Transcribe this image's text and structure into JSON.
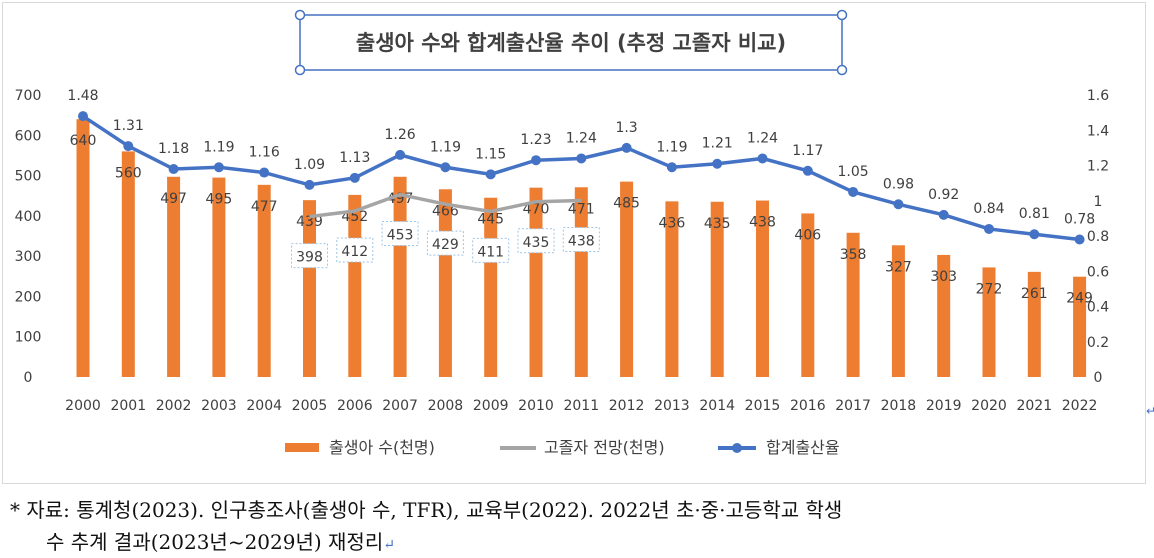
{
  "chart_data": {
    "type": "bar+line",
    "title": "출생아 수와 합계출산율 추이 (추정 고졸자 비교)",
    "categories": [
      "2000",
      "2001",
      "2002",
      "2003",
      "2004",
      "2005",
      "2006",
      "2007",
      "2008",
      "2009",
      "2010",
      "2011",
      "2012",
      "2013",
      "2014",
      "2015",
      "2016",
      "2017",
      "2018",
      "2019",
      "2020",
      "2021",
      "2022"
    ],
    "left_axis": {
      "ylim": [
        0,
        700
      ],
      "ticks": [
        "0",
        "100",
        "200",
        "300",
        "400",
        "500",
        "600",
        "700"
      ]
    },
    "right_axis": {
      "ylim": [
        0,
        1.6
      ],
      "ticks": [
        "0",
        "0.2",
        "0.4",
        "0.6",
        "0.8",
        "1",
        "1.2",
        "1.4",
        "1.6"
      ]
    },
    "series": [
      {
        "name": "출생아 수(천명)",
        "kind": "bar",
        "axis": "left",
        "color": "#ed7d31",
        "values": [
          640,
          560,
          497,
          495,
          477,
          439,
          452,
          497,
          466,
          445,
          470,
          471,
          485,
          436,
          435,
          438,
          406,
          358,
          327,
          303,
          272,
          261,
          249
        ]
      },
      {
        "name": "고졸자 전망(천명)",
        "kind": "line",
        "axis": "left",
        "color": "#a5a5a5",
        "values": [
          null,
          null,
          null,
          null,
          null,
          398,
          412,
          453,
          429,
          411,
          435,
          438,
          null,
          null,
          null,
          null,
          null,
          null,
          null,
          null,
          null,
          null,
          null
        ]
      },
      {
        "name": "합계출산율",
        "kind": "line",
        "axis": "right",
        "color": "#4472c4",
        "values": [
          1.48,
          1.31,
          1.18,
          1.19,
          1.16,
          1.09,
          1.13,
          1.26,
          1.19,
          1.15,
          1.23,
          1.24,
          1.3,
          1.19,
          1.21,
          1.24,
          1.17,
          1.05,
          0.98,
          0.92,
          0.84,
          0.81,
          0.78
        ]
      }
    ],
    "legend_position": "bottom",
    "grid": false
  },
  "caption": {
    "star": "*",
    "line1": "자료: 통계청(2023). 인구총조사(출생아 수, TFR), 교육부(2022). 2022년 초·중·고등학교 학생",
    "line2": "수 추계 결과(2023년~2029년) 재정리"
  },
  "colors": {
    "bar": "#ed7d31",
    "grad_line": "#a5a5a5",
    "tfr_line": "#4472c4",
    "title_border": "#4472c4"
  }
}
